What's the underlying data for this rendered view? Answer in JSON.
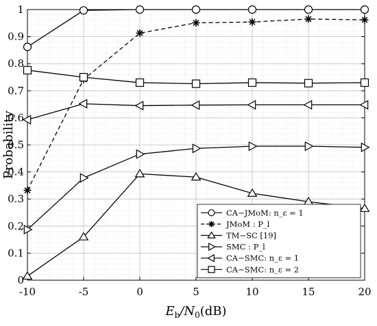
{
  "chart_data": {
    "type": "line",
    "xlabel": "E_b/N_0(dB)",
    "xlabel_main": "E",
    "xlabel_sub": "b",
    "xlabel_rest": "/N",
    "xlabel_sub2": "0",
    "xlabel_unit": "(dB)",
    "ylabel": "Probability",
    "xlim": [
      -10,
      20
    ],
    "ylim": [
      0,
      1
    ],
    "x_ticks": [
      -10,
      -5,
      0,
      5,
      10,
      15,
      20
    ],
    "y_ticks": [
      0,
      0.1,
      0.2,
      0.3,
      0.4,
      0.5,
      0.6,
      0.7,
      0.8,
      0.9,
      1
    ],
    "grid": true,
    "legend_position": "bottom-right",
    "x": [
      -10,
      -5,
      0,
      5,
      10,
      15,
      20
    ],
    "series": [
      {
        "name": "CA−JMoM: n_ε = 1",
        "marker": "circle",
        "dash": "solid",
        "values": [
          0.862,
          0.997,
          1.0,
          1.0,
          1.0,
          1.0,
          1.0
        ]
      },
      {
        "name": "JMoM : P_l",
        "marker": "asterisk",
        "dash": "dashed",
        "values": [
          0.332,
          0.742,
          0.913,
          0.951,
          0.954,
          0.965,
          0.962
        ]
      },
      {
        "name": "TM−SC [19]",
        "marker": "triangle-up",
        "dash": "solid",
        "values": [
          0.015,
          0.16,
          0.393,
          0.381,
          0.321,
          0.29,
          0.265
        ]
      },
      {
        "name": "SMC : P_l",
        "marker": "triangle-right",
        "dash": "solid",
        "values": [
          0.187,
          0.378,
          0.466,
          0.487,
          0.495,
          0.495,
          0.491
        ]
      },
      {
        "name": "CA−SMC: n_ε = 1",
        "marker": "triangle-left",
        "dash": "solid",
        "values": [
          0.593,
          0.652,
          0.645,
          0.647,
          0.648,
          0.648,
          0.648
        ]
      },
      {
        "name": "CA−SMC: n_ε = 2",
        "marker": "square",
        "dash": "solid",
        "values": [
          0.776,
          0.75,
          0.73,
          0.726,
          0.73,
          0.728,
          0.73
        ]
      }
    ]
  }
}
